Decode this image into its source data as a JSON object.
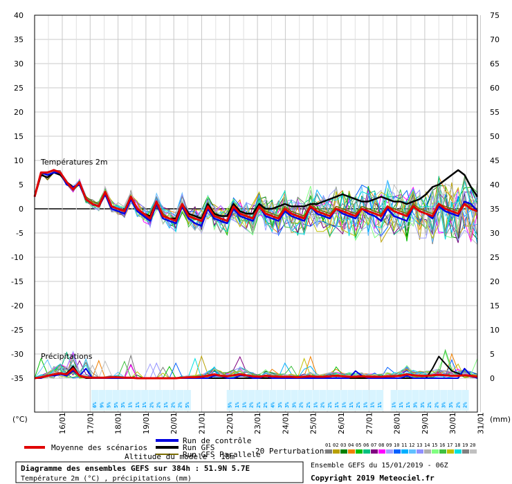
{
  "chart_data": {
    "type": "line",
    "title": "Diagramme des ensembles GEFS sur 384h : 51.9N 5.7E",
    "subtitle": "Température 2m (°C) , précipitations (mm)",
    "panels": {
      "temperature": "Températures 2m",
      "precipitation": "Précipitations"
    },
    "left_axis": {
      "unit": "(°C)",
      "ticks": [
        "40",
        "35",
        "30",
        "25",
        "20",
        "15",
        "10",
        "5",
        "0",
        "-5",
        "-10",
        "-15",
        "-20",
        "-25",
        "-30",
        "-35"
      ],
      "ylim": [
        -35,
        40
      ]
    },
    "right_axis": {
      "unit": "(mm)",
      "ticks": [
        "75",
        "70",
        "65",
        "60",
        "55",
        "50",
        "45",
        "40",
        "35",
        "30",
        "25",
        "20",
        "15",
        "10",
        "5",
        "0"
      ],
      "ylim": [
        0,
        75
      ]
    },
    "x_tick_labels": [
      "16/01",
      "17/01",
      "18/01",
      "19/01",
      "20/01",
      "21/01",
      "22/01",
      "23/01",
      "24/01",
      "25/01",
      "26/01",
      "27/01",
      "28/01",
      "29/01",
      "30/01",
      "31/01"
    ],
    "legend": {
      "mean": "Moyenne des scénarios",
      "control": "Run de contrôle",
      "gfs": "Run GFS",
      "gfs_parallel": "Run GFS Parallele",
      "perturbations": "20 Perturbations",
      "altitude": "Altitude du modèle : 18m"
    },
    "perturbation_ids": [
      "01",
      "02",
      "03",
      "04",
      "05",
      "06",
      "07",
      "08",
      "09",
      "10",
      "11",
      "12",
      "13",
      "14",
      "15",
      "16",
      "17",
      "18",
      "19",
      "20"
    ],
    "perturbation_colors": [
      "#7f7f7f",
      "#b8a000",
      "#008000",
      "#f08000",
      "#00c000",
      "#00c080",
      "#800080",
      "#ff00ff",
      "#a0a0ff",
      "#0060ff",
      "#00b0ff",
      "#60c0ff",
      "#9090ff",
      "#b0b0b0",
      "#80ff80",
      "#40c040",
      "#c0c000",
      "#00e0e0",
      "#808080",
      "#c0c0c0"
    ],
    "ensemble_info": "Ensemble GEFS du 15/01/2019 - 06Z",
    "copyright": "Copyright 2019 Meteociel.fr",
    "snow_probability_labels": [
      "6%",
      "9%",
      "5%",
      "5%",
      "3%",
      "1%",
      "1%",
      "1%",
      "2%",
      "2%",
      "1%",
      "2%",
      "2%",
      "5%",
      "",
      "",
      "",
      "",
      "",
      "5%",
      "1%",
      "1%",
      "2%",
      "2%",
      "2%",
      "4%",
      "3%",
      "3%",
      "3%",
      "2%",
      "2%",
      "1%",
      "2%",
      "2%",
      "1%",
      "1%",
      "1%",
      "2%",
      "1%",
      "1%",
      "1%",
      "",
      "1%",
      "1%",
      "1%",
      "3%",
      "3%",
      "2%",
      "2%",
      "3%",
      "3%",
      "2%",
      "2%"
    ],
    "series": {
      "mean_temp": [
        2.5,
        7.5,
        7.5,
        8.0,
        7.5,
        5.5,
        4.0,
        5.5,
        2.0,
        1.0,
        0.5,
        3.5,
        0.5,
        0.0,
        -0.5,
        2.5,
        0.0,
        -1.0,
        -2.0,
        1.5,
        -1.5,
        -2.0,
        -2.5,
        1.0,
        -1.5,
        -2.0,
        -2.5,
        0.5,
        -1.5,
        -2.0,
        -2.5,
        0.5,
        -1.0,
        -1.5,
        -2.0,
        0.5,
        -1.0,
        -1.5,
        -2.0,
        0.0,
        -1.0,
        -1.5,
        -2.0,
        0.5,
        -0.5,
        -1.0,
        -1.5,
        0.0,
        -0.5,
        -1.0,
        -1.5,
        0.0,
        -0.5,
        -1.0,
        -1.5,
        0.5,
        -0.5,
        -1.0,
        -1.5,
        0.5,
        -0.5,
        -1.0,
        -1.5,
        1.0,
        0.0,
        -0.5,
        -1.0,
        1.0,
        0.0,
        -0.5
      ],
      "control_temp": [
        2.5,
        7.5,
        7.0,
        7.5,
        7.5,
        5.0,
        4.5,
        5.0,
        2.0,
        1.0,
        0.5,
        3.0,
        0.0,
        -0.5,
        -1.0,
        2.0,
        -0.5,
        -1.5,
        -2.5,
        1.0,
        -2.0,
        -2.5,
        -3.0,
        0.5,
        -2.0,
        -3.0,
        -3.5,
        0.0,
        -2.0,
        -2.5,
        -3.0,
        0.0,
        -1.5,
        -2.0,
        -2.5,
        0.5,
        -1.5,
        -2.0,
        -2.5,
        -0.5,
        -1.5,
        -2.0,
        -2.5,
        0.5,
        -1.0,
        -1.5,
        -2.0,
        0.0,
        -1.0,
        -1.5,
        -2.0,
        0.0,
        -1.0,
        -1.5,
        -2.5,
        0.0,
        -1.5,
        -2.0,
        -2.5,
        0.5,
        -0.5,
        -1.0,
        -2.0,
        0.5,
        -0.5,
        -1.0,
        -1.5,
        1.5,
        1.0,
        -0.5
      ],
      "gfs_temp": [
        2.5,
        7.0,
        6.5,
        7.5,
        7.0,
        5.5,
        4.5,
        5.0,
        2.0,
        1.0,
        0.5,
        3.0,
        0.5,
        0.0,
        -0.5,
        2.0,
        0.0,
        -1.0,
        -1.5,
        1.5,
        -1.5,
        -2.0,
        -2.0,
        1.0,
        -1.0,
        -1.5,
        -2.0,
        1.0,
        -1.0,
        -1.5,
        -1.5,
        1.0,
        -0.5,
        -1.0,
        -1.0,
        1.0,
        0.0,
        0.0,
        0.5,
        1.0,
        0.5,
        0.5,
        0.5,
        1.0,
        1.0,
        1.5,
        2.0,
        2.5,
        3.0,
        2.5,
        2.0,
        1.5,
        1.5,
        2.0,
        2.5,
        2.0,
        1.5,
        1.5,
        1.0,
        1.5,
        2.0,
        3.0,
        4.5,
        5.0,
        6.0,
        7.0,
        8.0,
        7.0,
        4.5,
        2.5
      ],
      "gfs_parallel_temp": [
        2.5,
        7.5,
        6.0,
        7.5,
        7.0,
        5.0,
        4.0,
        5.5,
        2.5,
        1.5,
        1.0,
        3.5,
        0.5,
        0.0,
        -0.5,
        2.5,
        0.0,
        -1.0,
        -2.0,
        1.5,
        -1.0,
        -2.0,
        -2.5,
        1.0,
        -1.5,
        -2.0,
        -2.5,
        1.0,
        -1.0,
        -2.0,
        -2.5,
        0.5,
        -1.0,
        -1.5,
        -2.0,
        1.0,
        -0.5,
        -1.0,
        -1.5,
        0.5,
        -0.5,
        -1.0,
        -1.5,
        1.0,
        0.0,
        -0.5,
        -1.0,
        0.5,
        0.0,
        -0.5,
        -1.0,
        0.5,
        0.0,
        -0.5,
        -1.0,
        0.5,
        0.0,
        -0.5,
        -1.0,
        1.0,
        0.0,
        -0.5,
        -1.0,
        1.0,
        0.5,
        0.0,
        -0.5,
        1.5,
        0.5,
        0.0
      ],
      "mean_precip": [
        0,
        0.2,
        0.5,
        0.8,
        1.0,
        0.8,
        2.0,
        0.5,
        0.2,
        0.1,
        0.1,
        0.1,
        0.2,
        0.2,
        0.1,
        0.1,
        0,
        0,
        0,
        0,
        0,
        0,
        0,
        0.1,
        0.2,
        0.2,
        0.3,
        0.5,
        0.8,
        0.5,
        0.4,
        0.6,
        0.8,
        0.6,
        0.4,
        0.3,
        0.5,
        0.4,
        0.3,
        0.3,
        0.3,
        0.2,
        0.3,
        0.4,
        0.3,
        0.3,
        0.4,
        0.5,
        0.4,
        0.3,
        0.3,
        0.4,
        0.3,
        0.3,
        0.3,
        0.4,
        0.4,
        0.5,
        0.8,
        0.6,
        0.5,
        0.5,
        0.6,
        0.7,
        0.6,
        0.5,
        0.5,
        0.6,
        0.5,
        0.3
      ],
      "control_precip": [
        0,
        0,
        0.5,
        0.5,
        0.8,
        0.5,
        1.5,
        0.5,
        2.0,
        0,
        0,
        0,
        0,
        0,
        0,
        0,
        0,
        0,
        0,
        0,
        0,
        0,
        0,
        0,
        0,
        0,
        0,
        0,
        0.5,
        0.5,
        0,
        0,
        0.5,
        0.5,
        0,
        0,
        0.5,
        0,
        0,
        0,
        0,
        0,
        0,
        0,
        0,
        0,
        0,
        0,
        0,
        0,
        1.5,
        0.5,
        0,
        0,
        0,
        0,
        0,
        0,
        0.5,
        0,
        0,
        0,
        0,
        0,
        0,
        0,
        0,
        2.0,
        0.5,
        0
      ],
      "gfs_precip": [
        0,
        0,
        0.5,
        0.5,
        0.8,
        1.0,
        2.5,
        0.5,
        0,
        0,
        0,
        0,
        0,
        0,
        0,
        0,
        0,
        0,
        0,
        0,
        0,
        0,
        0,
        0,
        0,
        0,
        0,
        0,
        0,
        0,
        0,
        0,
        0,
        0,
        0,
        0,
        0,
        0,
        0,
        0,
        0,
        0,
        0,
        0,
        0,
        0,
        0,
        0,
        0,
        0,
        0,
        0,
        0,
        0,
        0,
        0,
        0,
        0,
        0,
        0,
        0,
        0,
        2.0,
        4.5,
        3.0,
        1.5,
        1.0,
        0.5,
        0.5,
        0
      ]
    }
  }
}
